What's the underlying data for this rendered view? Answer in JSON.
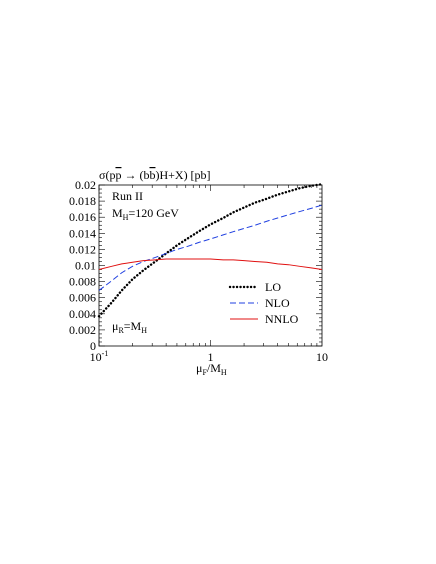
{
  "chart_data": {
    "type": "line",
    "title_parts": {
      "pre": "σ(p",
      "pbar": "p",
      "mid": " → (b",
      "bbar": "b",
      "post": ")H+X) [pb]"
    },
    "annotations": {
      "run": "Run II",
      "mass_main": "M",
      "mass_sub": "H",
      "mass_value": "=120 GeV",
      "scale_main": "μ",
      "scale_sub": "R",
      "scale_eq": "=M",
      "scale_sub2": "H"
    },
    "xlabel_parts": {
      "main": "μ",
      "sub": "F",
      "slash": "/M",
      "sub2": "H"
    },
    "x_scale": "log",
    "xlim": [
      0.1,
      10
    ],
    "ylim": [
      0,
      0.02
    ],
    "x_ticks": [
      {
        "base": "10",
        "exp": "-1"
      },
      {
        "base": "1",
        "exp": ""
      },
      {
        "base": "10",
        "exp": ""
      }
    ],
    "y_ticks": [
      "0",
      "0.002",
      "0.004",
      "0.006",
      "0.008",
      "0.01",
      "0.012",
      "0.014",
      "0.016",
      "0.018",
      "0.02"
    ],
    "legend_position": "lower-right",
    "x": [
      0.1,
      0.13,
      0.16,
      0.2,
      0.25,
      0.32,
      0.4,
      0.5,
      0.63,
      0.8,
      1.0,
      1.3,
      1.6,
      2.0,
      2.5,
      3.2,
      4.0,
      5.0,
      6.3,
      8.0,
      10.0
    ],
    "series": [
      {
        "name": "LO",
        "color": "#000000",
        "style": "dotted",
        "values": [
          0.0037,
          0.0054,
          0.0069,
          0.0083,
          0.0094,
          0.0105,
          0.0115,
          0.0125,
          0.0134,
          0.0143,
          0.0151,
          0.0159,
          0.0166,
          0.0172,
          0.0178,
          0.0183,
          0.0188,
          0.0192,
          0.0196,
          0.0199,
          0.0201
        ]
      },
      {
        "name": "NLO",
        "color": "#1f3fe0",
        "style": "dashed",
        "values": [
          0.0069,
          0.0081,
          0.0091,
          0.0099,
          0.0105,
          0.011,
          0.0115,
          0.012,
          0.0124,
          0.0129,
          0.0133,
          0.0138,
          0.0142,
          0.0146,
          0.015,
          0.0155,
          0.0159,
          0.0163,
          0.0167,
          0.0171,
          0.0175
        ]
      },
      {
        "name": "NNLO",
        "color": "#e01010",
        "style": "solid",
        "values": [
          0.0095,
          0.0099,
          0.0102,
          0.0104,
          0.0106,
          0.0107,
          0.0108,
          0.0108,
          0.0108,
          0.0108,
          0.0108,
          0.0107,
          0.0107,
          0.0106,
          0.0105,
          0.0104,
          0.0102,
          0.0101,
          0.0099,
          0.0097,
          0.0095
        ]
      }
    ]
  }
}
